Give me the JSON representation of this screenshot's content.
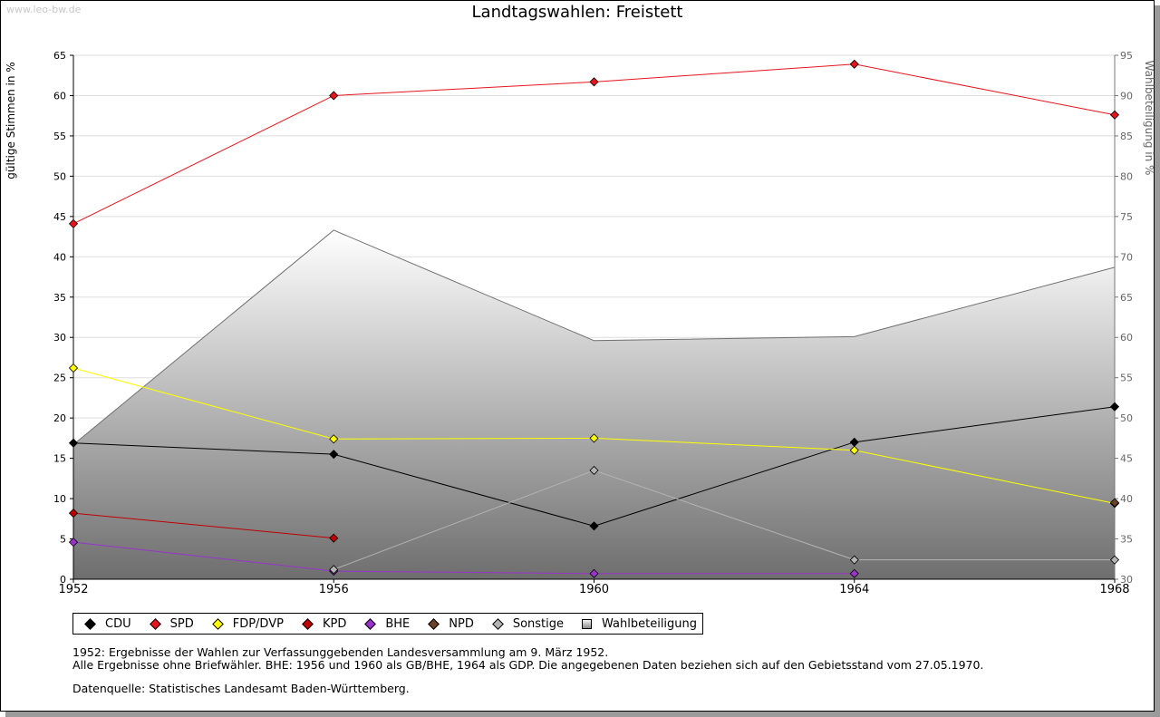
{
  "watermark": "www.leo-bw.de",
  "chart_data": {
    "type": "line",
    "title": "Landtagswahlen: Freistett",
    "ylabel": "gültige Stimmen in %",
    "y2label": "Wahlbeteiligung in %",
    "x": [
      "1952",
      "1956",
      "1960",
      "1964",
      "1968"
    ],
    "ylim": [
      0,
      65
    ],
    "yticks": [
      0,
      5,
      10,
      15,
      20,
      25,
      30,
      35,
      40,
      45,
      50,
      55,
      60,
      65
    ],
    "y2lim": [
      30,
      95
    ],
    "y2ticks": [
      30,
      35,
      40,
      45,
      50,
      55,
      60,
      65,
      70,
      75,
      80,
      85,
      90,
      95
    ],
    "grid": true,
    "legend_position": "bottom",
    "series": [
      {
        "name": "CDU",
        "color": "#000000",
        "values": [
          16.9,
          15.5,
          6.6,
          17.0,
          21.4
        ]
      },
      {
        "name": "SPD",
        "color": "#e8141b",
        "values": [
          44.1,
          60.0,
          61.7,
          63.9,
          57.6
        ]
      },
      {
        "name": "FDP/DVP",
        "color": "#ffff00",
        "values": [
          26.2,
          17.4,
          17.5,
          16.0,
          9.4
        ]
      },
      {
        "name": "KPD",
        "color": "#c00000",
        "values": [
          8.2,
          5.1,
          null,
          null,
          null
        ]
      },
      {
        "name": "BHE",
        "color": "#9933cc",
        "values": [
          4.6,
          1.0,
          0.7,
          0.7,
          null
        ]
      },
      {
        "name": "NPD",
        "color": "#6b4226",
        "values": [
          null,
          null,
          null,
          null,
          9.5
        ]
      },
      {
        "name": "Sonstige",
        "color": "#b4b4b4",
        "values": [
          null,
          1.2,
          13.5,
          2.4,
          2.4
        ]
      }
    ],
    "turnout": {
      "name": "Wahlbeteiligung",
      "axis": "right",
      "values": [
        46.7,
        73.3,
        59.6,
        60.1,
        68.7
      ]
    }
  },
  "notes": {
    "line1": "1952: Ergebnisse der Wahlen zur Verfassunggebenden Landesversammlung am 9. März 1952.",
    "line2": "Alle Ergebnisse ohne Briefwähler. BHE: 1956 und 1960 als GB/BHE, 1964 als GDP. Die angegebenen Daten beziehen sich auf den Gebietsstand vom 27.05.1970.",
    "source": "Datenquelle: Statistisches Landesamt Baden-Württemberg."
  }
}
